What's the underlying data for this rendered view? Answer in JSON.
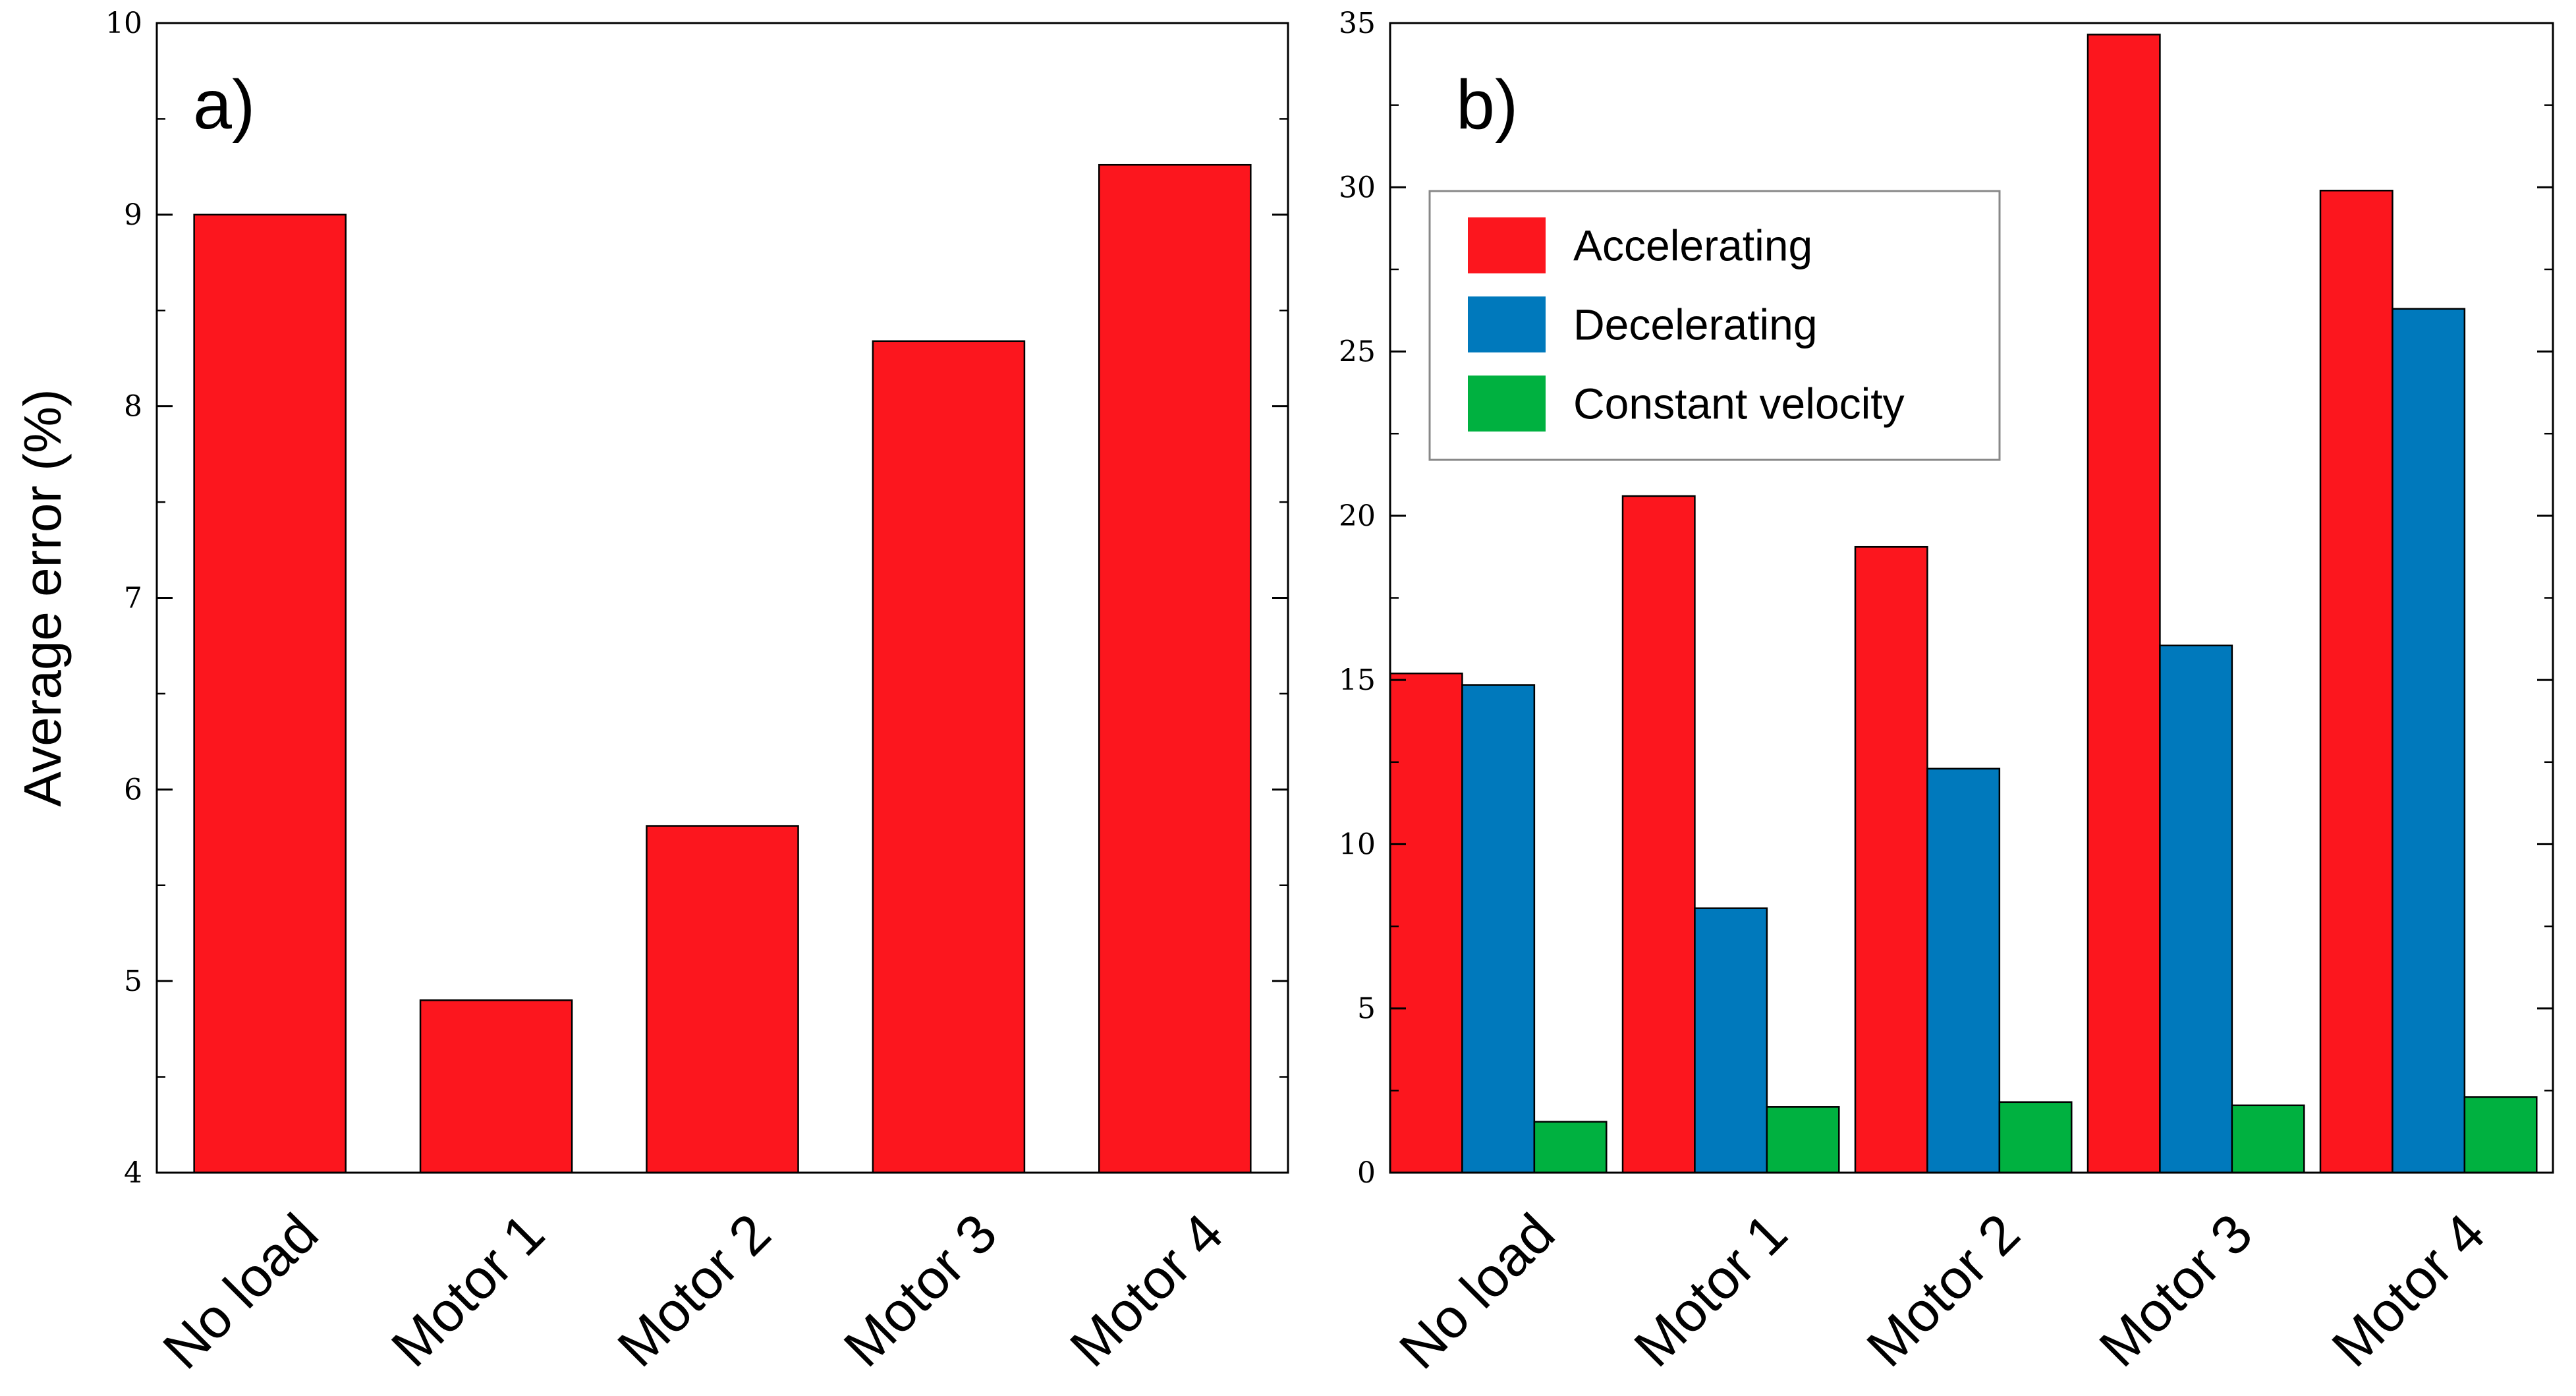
{
  "chart_data": [
    {
      "type": "bar",
      "panel_label": "a)",
      "title": "",
      "xlabel": "",
      "ylabel": "Average error (%)",
      "ylim": [
        4,
        10
      ],
      "yticks": [
        4,
        5,
        6,
        7,
        8,
        9,
        10
      ],
      "categories": [
        "No load",
        "Motor 1",
        "Motor 2",
        "Motor 3",
        "Motor 4"
      ],
      "series": [
        {
          "name": "Average error",
          "color": "#fc161e",
          "values": [
            9.0,
            4.9,
            5.81,
            8.34,
            9.26
          ]
        }
      ],
      "grid": false,
      "legend": null
    },
    {
      "type": "bar",
      "panel_label": "b)",
      "title": "",
      "xlabel": "",
      "ylabel": "",
      "ylim": [
        0,
        35
      ],
      "yticks": [
        0,
        5,
        10,
        15,
        20,
        25,
        30,
        35
      ],
      "categories": [
        "No load",
        "Motor 1",
        "Motor 2",
        "Motor 3",
        "Motor 4"
      ],
      "series": [
        {
          "name": "Accelerating",
          "color": "#fc161e",
          "values": [
            15.2,
            20.6,
            19.05,
            34.65,
            29.9
          ]
        },
        {
          "name": "Decelerating",
          "color": "#0079bc",
          "values": [
            14.85,
            8.05,
            12.3,
            16.05,
            26.3
          ]
        },
        {
          "name": "Constant velocity",
          "color": "#00b140",
          "values": [
            1.55,
            2.0,
            2.15,
            2.05,
            2.3
          ]
        }
      ],
      "grid": false,
      "legend": "top-left"
    }
  ]
}
